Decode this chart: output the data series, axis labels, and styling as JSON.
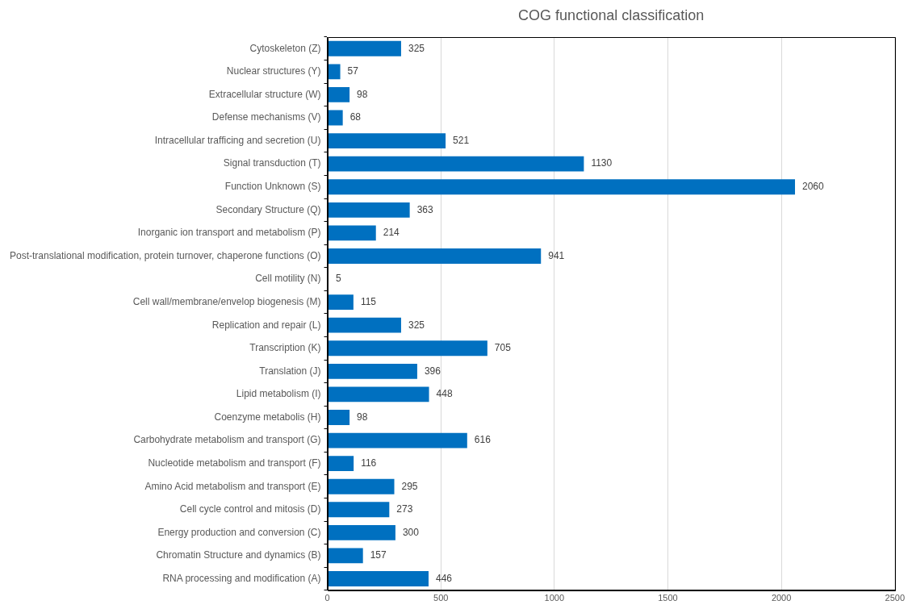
{
  "chart_data": {
    "type": "bar",
    "orientation": "horizontal",
    "title": "COG functional classification",
    "categories": [
      "Cytoskeleton (Z)",
      "Nuclear structures (Y)",
      "Extracellular structure (W)",
      "Defense mechanisms (V)",
      "Intracellular trafficing and secretion (U)",
      "Signal transduction (T)",
      "Function Unknown (S)",
      "Secondary Structure (Q)",
      "Inorganic ion transport and metabolism (P)",
      "Post-translational modification, protein turnover, chaperone functions (O)",
      "Cell motility (N)",
      "Cell wall/membrane/envelop biogenesis (M)",
      "Replication and repair (L)",
      "Transcription (K)",
      "Translation (J)",
      "Lipid metabolism (I)",
      "Coenzyme metabolis (H)",
      "Carbohydrate metabolism and transport (G)",
      "Nucleotide metabolism and transport (F)",
      "Amino Acid metabolism and transport (E)",
      "Cell cycle control and mitosis (D)",
      "Energy production and conversion (C)",
      "Chromatin Structure and dynamics (B)",
      "RNA processing and modification (A)"
    ],
    "values": [
      325,
      57,
      98,
      68,
      521,
      1130,
      2060,
      363,
      214,
      941,
      5,
      115,
      325,
      705,
      396,
      448,
      98,
      616,
      116,
      295,
      273,
      300,
      157,
      446
    ],
    "color": "#0070c0",
    "data_labels": true,
    "xlim": [
      0,
      2500
    ],
    "xticks": [
      0,
      500,
      1000,
      1500,
      2000,
      2500
    ],
    "grid": "x"
  }
}
